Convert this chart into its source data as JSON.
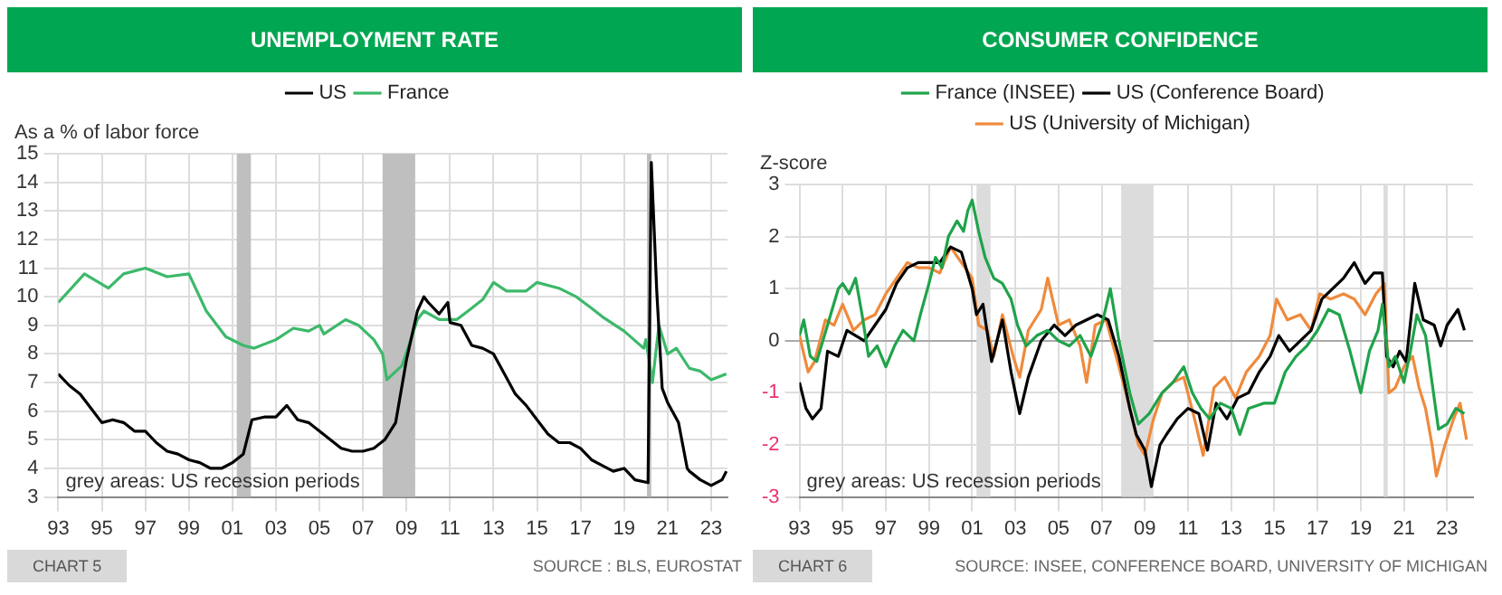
{
  "chart_data": [
    {
      "type": "line",
      "title": "UNEMPLOYMENT RATE",
      "ylabel": "As a % of labor force",
      "legend": "top",
      "grid": true,
      "marker": "none",
      "line_style": "solid",
      "annotations": [
        "grey areas: US recession periods",
        "CHART 5",
        "SOURCE : BLS, EUROSTAT"
      ],
      "xlim": [
        1993,
        2023.75
      ],
      "ylim": [
        3,
        15
      ],
      "xticks": [
        {
          "value": 1993,
          "label": "93"
        },
        {
          "value": 1995,
          "label": "95"
        },
        {
          "value": 1997,
          "label": "97"
        },
        {
          "value": 1999,
          "label": "99"
        },
        {
          "value": 2001,
          "label": "01"
        },
        {
          "value": 2003,
          "label": "03"
        },
        {
          "value": 2005,
          "label": "05"
        },
        {
          "value": 2007,
          "label": "07"
        },
        {
          "value": 2009,
          "label": "09"
        },
        {
          "value": 2011,
          "label": "11"
        },
        {
          "value": 2013,
          "label": "13"
        },
        {
          "value": 2015,
          "label": "15"
        },
        {
          "value": 2017,
          "label": "17"
        },
        {
          "value": 2019,
          "label": "19"
        },
        {
          "value": 2021,
          "label": "21"
        },
        {
          "value": 2023,
          "label": "23"
        }
      ],
      "yticks": [
        3,
        4,
        5,
        6,
        7,
        8,
        9,
        10,
        11,
        12,
        13,
        14,
        15
      ],
      "bands": [
        {
          "axis": "x",
          "from": 2001.2,
          "to": 2001.85,
          "color": "#bfbfbf"
        },
        {
          "axis": "x",
          "from": 2007.9,
          "to": 2009.4,
          "color": "#bfbfbf"
        },
        {
          "axis": "x",
          "from": 2020.05,
          "to": 2020.25,
          "color": "#bfbfbf"
        }
      ],
      "series": [
        {
          "name": "US",
          "color": "#000000",
          "x": [
            1993,
            1993.5,
            1994,
            1994.5,
            1995,
            1995.5,
            1996,
            1996.5,
            1997,
            1997.5,
            1998,
            1998.5,
            1999,
            1999.5,
            2000,
            2000.5,
            2001,
            2001.5,
            2001.9,
            2002.5,
            2003,
            2003.5,
            2004,
            2004.5,
            2005,
            2005.5,
            2006,
            2006.5,
            2007,
            2007.5,
            2008,
            2008.5,
            2009,
            2009.5,
            2009.8,
            2010,
            2010.5,
            2010.9,
            2011,
            2011.5,
            2012,
            2012.5,
            2013,
            2013.5,
            2014,
            2014.5,
            2015,
            2015.5,
            2016,
            2016.5,
            2017,
            2017.5,
            2018,
            2018.5,
            2019,
            2019.5,
            2020.1,
            2020.25,
            2020.5,
            2020.75,
            2021,
            2021.5,
            2021.9,
            2022,
            2022.5,
            2023,
            2023.5,
            2023.7
          ],
          "values": [
            7.3,
            6.9,
            6.6,
            6.1,
            5.6,
            5.7,
            5.6,
            5.3,
            5.3,
            4.9,
            4.6,
            4.5,
            4.3,
            4.2,
            4.0,
            4.0,
            4.2,
            4.5,
            5.7,
            5.8,
            5.8,
            6.2,
            5.7,
            5.6,
            5.3,
            5.0,
            4.7,
            4.6,
            4.6,
            4.7,
            5.0,
            5.6,
            7.8,
            9.5,
            10.0,
            9.8,
            9.4,
            9.8,
            9.1,
            9.0,
            8.3,
            8.2,
            8.0,
            7.3,
            6.6,
            6.2,
            5.7,
            5.2,
            4.9,
            4.9,
            4.7,
            4.3,
            4.1,
            3.9,
            4.0,
            3.6,
            3.5,
            14.7,
            10.2,
            6.8,
            6.3,
            5.6,
            4.0,
            3.9,
            3.6,
            3.4,
            3.6,
            3.9
          ]
        },
        {
          "name": "France",
          "color": "#3cb96a",
          "x": [
            1993,
            1994.2,
            1995.3,
            1996,
            1997,
            1998,
            1999,
            1999.8,
            2000.7,
            2001.5,
            2002,
            2003,
            2003.8,
            2004.5,
            2005,
            2005.2,
            2006.2,
            2006.8,
            2007.5,
            2007.9,
            2008.1,
            2008.8,
            2009.2,
            2009.5,
            2009.8,
            2010.5,
            2011.3,
            2012,
            2012.5,
            2013,
            2013.6,
            2014.5,
            2015,
            2016,
            2016.8,
            2017.5,
            2018,
            2019,
            2019.9,
            2020,
            2020.3,
            2020.6,
            2021,
            2021.4,
            2022,
            2022.5,
            2023,
            2023.7
          ],
          "values": [
            9.8,
            10.8,
            10.3,
            10.8,
            11.0,
            10.7,
            10.8,
            9.5,
            8.6,
            8.3,
            8.2,
            8.5,
            8.9,
            8.8,
            9.0,
            8.7,
            9.2,
            9.0,
            8.5,
            8.0,
            7.1,
            7.6,
            8.5,
            9.2,
            9.5,
            9.2,
            9.2,
            9.6,
            9.9,
            10.5,
            10.2,
            10.2,
            10.5,
            10.3,
            10.0,
            9.6,
            9.3,
            8.8,
            8.2,
            8.5,
            7.0,
            9.0,
            8.0,
            8.2,
            7.5,
            7.4,
            7.1,
            7.3
          ]
        }
      ]
    },
    {
      "type": "line",
      "title": "CONSUMER CONFIDENCE",
      "ylabel": "Z-score",
      "legend": "top",
      "grid": true,
      "marker": "none",
      "line_style": "solid",
      "annotations": [
        "grey areas: US recession periods",
        "CHART 6",
        "SOURCE: INSEE, CONFERENCE BOARD, UNIVERSITY OF MICHIGAN"
      ],
      "xlim": [
        1993,
        2024.2
      ],
      "ylim": [
        -3,
        3
      ],
      "xticks": [
        {
          "value": 1993,
          "label": "93"
        },
        {
          "value": 1995,
          "label": "95"
        },
        {
          "value": 1997,
          "label": "97"
        },
        {
          "value": 1999,
          "label": "99"
        },
        {
          "value": 2001,
          "label": "01"
        },
        {
          "value": 2003,
          "label": "03"
        },
        {
          "value": 2005,
          "label": "05"
        },
        {
          "value": 2007,
          "label": "07"
        },
        {
          "value": 2009,
          "label": "09"
        },
        {
          "value": 2011,
          "label": "11"
        },
        {
          "value": 2013,
          "label": "13"
        },
        {
          "value": 2015,
          "label": "15"
        },
        {
          "value": 2017,
          "label": "17"
        },
        {
          "value": 2019,
          "label": "19"
        },
        {
          "value": 2021,
          "label": "21"
        },
        {
          "value": 2023,
          "label": "23"
        }
      ],
      "yticks": [
        -3,
        -2,
        -1,
        0,
        1,
        2,
        3
      ],
      "bands": [
        {
          "axis": "x",
          "from": 2001.2,
          "to": 2001.85,
          "color": "#dcdcdc"
        },
        {
          "axis": "x",
          "from": 2007.9,
          "to": 2009.4,
          "color": "#dcdcdc"
        },
        {
          "axis": "x",
          "from": 2020.05,
          "to": 2020.25,
          "color": "#dcdcdc"
        }
      ],
      "series": [
        {
          "name": "France (INSEE)",
          "color": "#1fa34a",
          "x": [
            1993,
            1993.2,
            1993.5,
            1993.8,
            1994.3,
            1994.8,
            1995,
            1995.3,
            1995.6,
            1995.9,
            1996.2,
            1996.6,
            1997,
            1997.4,
            1997.8,
            1998.3,
            1998.6,
            1999,
            1999.3,
            1999.6,
            1999.9,
            2000.3,
            2000.6,
            2000.8,
            2001,
            2001.3,
            2001.6,
            2002,
            2002.4,
            2002.8,
            2003.1,
            2003.5,
            2004,
            2004.5,
            2005,
            2005.5,
            2006,
            2006.5,
            2007,
            2007.4,
            2007.8,
            2008.3,
            2008.7,
            2009.2,
            2009.8,
            2010.3,
            2010.8,
            2011.2,
            2011.6,
            2012,
            2012.5,
            2013,
            2013.4,
            2013.8,
            2014.5,
            2015,
            2015.5,
            2016,
            2016.5,
            2017,
            2017.5,
            2018,
            2018.5,
            2019,
            2019.4,
            2019.8,
            2020,
            2020.3,
            2020.6,
            2021,
            2021.3,
            2021.6,
            2022,
            2022.3,
            2022.6,
            2023,
            2023.4,
            2023.8
          ],
          "values": [
            0.1,
            0.4,
            -0.3,
            -0.4,
            0.3,
            1.0,
            1.1,
            0.9,
            1.2,
            0.5,
            -0.3,
            -0.1,
            -0.5,
            -0.1,
            0.2,
            0.0,
            0.5,
            1.1,
            1.6,
            1.4,
            2.0,
            2.3,
            2.1,
            2.5,
            2.7,
            2.1,
            1.6,
            1.2,
            1.1,
            0.8,
            0.3,
            -0.1,
            0.1,
            0.2,
            0.0,
            -0.1,
            0.1,
            -0.3,
            0.3,
            1.0,
            0.0,
            -1.0,
            -1.6,
            -1.4,
            -1.0,
            -0.8,
            -0.5,
            -1.0,
            -1.3,
            -1.5,
            -1.2,
            -1.3,
            -1.8,
            -1.3,
            -1.2,
            -1.2,
            -0.6,
            -0.3,
            -0.1,
            0.2,
            0.6,
            0.5,
            -0.2,
            -1.0,
            -0.2,
            0.2,
            0.7,
            -0.5,
            -0.3,
            -0.8,
            -0.2,
            0.5,
            0.1,
            -0.8,
            -1.7,
            -1.6,
            -1.3,
            -1.4
          ]
        },
        {
          "name": "US (Conference Board)",
          "color": "#000000",
          "x": [
            1993,
            1993.3,
            1993.6,
            1994,
            1994.3,
            1994.8,
            1995.2,
            1995.6,
            1996,
            1996.5,
            1997,
            1997.5,
            1998,
            1998.5,
            1999,
            1999.5,
            2000,
            2000.5,
            2001,
            2001.2,
            2001.5,
            2001.9,
            2002.4,
            2002.8,
            2003.2,
            2003.6,
            2004.2,
            2004.8,
            2005.3,
            2005.8,
            2006.3,
            2006.8,
            2007.3,
            2007.8,
            2008.3,
            2008.6,
            2009,
            2009.3,
            2009.7,
            2010,
            2010.5,
            2011,
            2011.5,
            2011.9,
            2012.3,
            2012.8,
            2013.3,
            2013.8,
            2014.3,
            2014.8,
            2015.2,
            2015.7,
            2016.2,
            2016.7,
            2017.2,
            2017.7,
            2018.2,
            2018.7,
            2019.2,
            2019.6,
            2020,
            2020.2,
            2020.5,
            2020.8,
            2021.1,
            2021.5,
            2021.9,
            2022.4,
            2022.7,
            2023,
            2023.5,
            2023.8
          ],
          "values": [
            -0.8,
            -1.3,
            -1.5,
            -1.3,
            -0.2,
            -0.3,
            0.2,
            0.1,
            0.0,
            0.3,
            0.6,
            1.1,
            1.4,
            1.5,
            1.5,
            1.5,
            1.8,
            1.7,
            1.0,
            0.5,
            0.7,
            -0.4,
            0.4,
            -0.6,
            -1.4,
            -0.7,
            0.0,
            0.3,
            0.1,
            0.3,
            0.4,
            0.5,
            0.4,
            -0.3,
            -1.3,
            -1.8,
            -2.1,
            -2.8,
            -2.0,
            -1.8,
            -1.5,
            -1.3,
            -1.4,
            -2.1,
            -1.2,
            -1.5,
            -1.1,
            -1.0,
            -0.6,
            -0.3,
            0.1,
            -0.2,
            0.0,
            0.2,
            0.8,
            1.0,
            1.2,
            1.5,
            1.1,
            1.3,
            1.3,
            -0.3,
            -0.5,
            -0.2,
            -0.4,
            1.1,
            0.4,
            0.3,
            -0.1,
            0.3,
            0.6,
            0.2
          ]
        },
        {
          "name": "US (University of Michigan)",
          "color": "#ef8a3c",
          "x": [
            1993,
            1993.4,
            1993.7,
            1994.2,
            1994.6,
            1995,
            1995.5,
            1996,
            1996.5,
            1997,
            1997.5,
            1998,
            1998.5,
            1999,
            1999.5,
            2000,
            2000.5,
            2001,
            2001.3,
            2001.7,
            2002,
            2002.4,
            2002.9,
            2003.2,
            2003.6,
            2004.2,
            2004.5,
            2005,
            2005.5,
            2006,
            2006.3,
            2006.7,
            2007.2,
            2007.8,
            2008.3,
            2008.7,
            2009,
            2009.4,
            2009.8,
            2010.3,
            2010.8,
            2011.3,
            2011.7,
            2012.2,
            2012.7,
            2013.2,
            2013.7,
            2014.3,
            2014.8,
            2015.1,
            2015.6,
            2016.2,
            2016.7,
            2017.1,
            2017.6,
            2018.2,
            2018.7,
            2019.2,
            2019.7,
            2020.1,
            2020.3,
            2020.6,
            2021,
            2021.4,
            2021.7,
            2022,
            2022.3,
            2022.5,
            2022.9,
            2023.3,
            2023.6,
            2023.9
          ],
          "values": [
            0.1,
            -0.6,
            -0.4,
            0.4,
            0.3,
            0.7,
            0.2,
            0.4,
            0.5,
            0.9,
            1.2,
            1.5,
            1.4,
            1.4,
            1.3,
            1.8,
            1.5,
            1.2,
            0.3,
            0.2,
            -0.3,
            0.5,
            -0.3,
            -0.7,
            0.2,
            0.6,
            1.2,
            0.3,
            0.4,
            -0.1,
            -0.8,
            0.3,
            0.4,
            -0.5,
            -1.3,
            -2.0,
            -2.2,
            -1.5,
            -1.0,
            -0.8,
            -0.7,
            -1.5,
            -2.2,
            -0.9,
            -0.7,
            -1.1,
            -0.6,
            -0.3,
            0.1,
            0.8,
            0.4,
            0.5,
            0.2,
            0.9,
            0.8,
            0.9,
            0.8,
            0.5,
            0.9,
            1.1,
            -1.0,
            -0.9,
            -0.5,
            -0.3,
            -0.9,
            -1.3,
            -2.0,
            -2.6,
            -2.0,
            -1.5,
            -1.2,
            -1.9
          ]
        }
      ]
    }
  ]
}
